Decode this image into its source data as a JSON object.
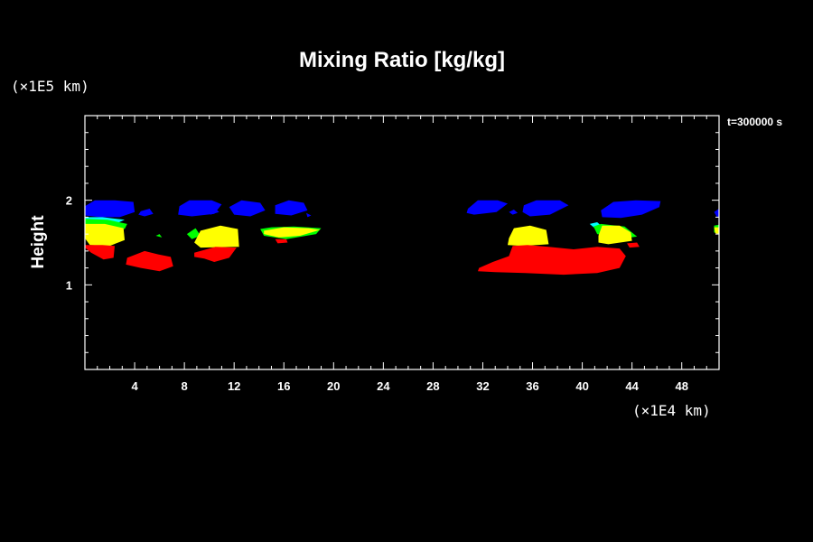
{
  "chart_data": {
    "type": "heatmap",
    "title": "Mixing Ratio [kg/kg]",
    "ylabel": "Height",
    "y_scale_label": "(×1E5 km)",
    "x_scale_label": "(×1E4 km)",
    "time_label": "t=300000 s",
    "xlim": [
      0,
      51
    ],
    "ylim": [
      0,
      3
    ],
    "x_ticks": [
      4,
      8,
      12,
      16,
      20,
      24,
      28,
      32,
      36,
      40,
      44,
      48
    ],
    "y_ticks": [
      1,
      2
    ],
    "background": "#000000",
    "colors": {
      "blue": "#0000ff",
      "cyan": "#00ffff",
      "green": "#00ff00",
      "yellow": "#ffff00",
      "red": "#ff0000"
    },
    "regions": [
      {
        "color": "blue",
        "points": [
          [
            0,
            1.93
          ],
          [
            0.8,
            2.0
          ],
          [
            2.4,
            2.0
          ],
          [
            3.9,
            1.98
          ],
          [
            4,
            1.86
          ],
          [
            2.8,
            1.8
          ],
          [
            1.2,
            1.8
          ],
          [
            0,
            1.82
          ]
        ]
      },
      {
        "color": "blue",
        "points": [
          [
            7.6,
            1.93
          ],
          [
            8.4,
            2.0
          ],
          [
            10.2,
            2.0
          ],
          [
            11,
            1.95
          ],
          [
            10.4,
            1.84
          ],
          [
            8.6,
            1.81
          ],
          [
            7.5,
            1.83
          ]
        ]
      },
      {
        "color": "blue",
        "points": [
          [
            11.6,
            1.92
          ],
          [
            12.6,
            2.0
          ],
          [
            14.1,
            1.97
          ],
          [
            14.5,
            1.88
          ],
          [
            13.3,
            1.81
          ],
          [
            12,
            1.83
          ]
        ]
      },
      {
        "color": "blue",
        "points": [
          [
            15.3,
            1.94
          ],
          [
            16.4,
            2.0
          ],
          [
            17.6,
            1.97
          ],
          [
            17.9,
            1.88
          ],
          [
            16.6,
            1.82
          ],
          [
            15.3,
            1.84
          ]
        ]
      },
      {
        "color": "blue",
        "points": [
          [
            17.8,
            1.85
          ],
          [
            18.2,
            1.82
          ],
          [
            17.9,
            1.8
          ]
        ]
      },
      {
        "color": "blue",
        "points": [
          [
            4.5,
            1.87
          ],
          [
            5.2,
            1.9
          ],
          [
            5.5,
            1.84
          ],
          [
            4.8,
            1.81
          ],
          [
            4.3,
            1.83
          ]
        ]
      },
      {
        "color": "blue",
        "points": [
          [
            9.8,
            1.88
          ],
          [
            10.4,
            1.91
          ],
          [
            10.8,
            1.86
          ],
          [
            10.1,
            1.83
          ]
        ]
      },
      {
        "color": "blue",
        "points": [
          [
            30.8,
            1.9
          ],
          [
            31.6,
            2.0
          ],
          [
            33.2,
            2.0
          ],
          [
            34,
            1.96
          ],
          [
            33.1,
            1.86
          ],
          [
            31.3,
            1.83
          ],
          [
            30.7,
            1.85
          ]
        ]
      },
      {
        "color": "blue",
        "points": [
          [
            35.3,
            1.94
          ],
          [
            36.3,
            2.0
          ],
          [
            38.2,
            2.0
          ],
          [
            38.9,
            1.94
          ],
          [
            37.4,
            1.83
          ],
          [
            35.8,
            1.81
          ],
          [
            35.2,
            1.86
          ]
        ]
      },
      {
        "color": "blue",
        "points": [
          [
            41.5,
            1.88
          ],
          [
            42.5,
            1.98
          ],
          [
            44.3,
            2.0
          ],
          [
            46.3,
            1.99
          ],
          [
            46.2,
            1.92
          ],
          [
            44.8,
            1.83
          ],
          [
            43.1,
            1.79
          ],
          [
            41.6,
            1.8
          ]
        ]
      },
      {
        "color": "blue",
        "points": [
          [
            34.1,
            1.86
          ],
          [
            34.5,
            1.89
          ],
          [
            34.8,
            1.85
          ],
          [
            34.4,
            1.83
          ]
        ]
      },
      {
        "color": "blue",
        "points": [
          [
            50.6,
            1.86
          ],
          [
            51,
            1.9
          ],
          [
            51,
            1.8
          ],
          [
            50.8,
            1.81
          ]
        ]
      },
      {
        "color": "cyan",
        "points": [
          [
            0,
            1.8
          ],
          [
            1.4,
            1.8
          ],
          [
            3.2,
            1.77
          ],
          [
            2.6,
            1.73
          ],
          [
            0,
            1.74
          ]
        ]
      },
      {
        "color": "cyan",
        "points": [
          [
            40.6,
            1.72
          ],
          [
            41.2,
            1.74
          ],
          [
            41.6,
            1.69
          ],
          [
            41,
            1.67
          ]
        ]
      },
      {
        "color": "green",
        "points": [
          [
            0,
            1.78
          ],
          [
            1.8,
            1.77
          ],
          [
            3.4,
            1.72
          ],
          [
            3.2,
            1.66
          ],
          [
            0,
            1.68
          ]
        ]
      },
      {
        "color": "green",
        "points": [
          [
            14.1,
            1.66
          ],
          [
            15,
            1.68
          ],
          [
            16.8,
            1.69
          ],
          [
            19,
            1.67
          ],
          [
            18.6,
            1.6
          ],
          [
            16.2,
            1.54
          ],
          [
            14.4,
            1.58
          ]
        ]
      },
      {
        "color": "green",
        "points": [
          [
            40.9,
            1.69
          ],
          [
            41.5,
            1.72
          ],
          [
            43.4,
            1.69
          ],
          [
            44.4,
            1.57
          ],
          [
            42.9,
            1.54
          ],
          [
            41.2,
            1.6
          ]
        ]
      },
      {
        "color": "green",
        "points": [
          [
            8.2,
            1.6
          ],
          [
            8.9,
            1.67
          ],
          [
            9.3,
            1.58
          ],
          [
            8.6,
            1.54
          ]
        ]
      },
      {
        "color": "green",
        "points": [
          [
            5.7,
            1.58
          ],
          [
            6,
            1.6
          ],
          [
            6.2,
            1.56
          ]
        ]
      },
      {
        "color": "green",
        "points": [
          [
            50.6,
            1.7
          ],
          [
            51,
            1.71
          ],
          [
            51,
            1.6
          ],
          [
            50.6,
            1.62
          ]
        ]
      },
      {
        "color": "yellow",
        "points": [
          [
            0,
            1.72
          ],
          [
            1.6,
            1.72
          ],
          [
            3.1,
            1.67
          ],
          [
            3.2,
            1.53
          ],
          [
            2,
            1.46
          ],
          [
            0.4,
            1.47
          ],
          [
            0,
            1.55
          ]
        ]
      },
      {
        "color": "yellow",
        "points": [
          [
            8.8,
            1.5
          ],
          [
            9.3,
            1.64
          ],
          [
            10.9,
            1.7
          ],
          [
            12.3,
            1.66
          ],
          [
            12.4,
            1.45
          ],
          [
            9.3,
            1.44
          ]
        ]
      },
      {
        "color": "yellow",
        "points": [
          [
            14.4,
            1.64
          ],
          [
            16,
            1.68
          ],
          [
            18,
            1.67
          ],
          [
            18.9,
            1.65
          ],
          [
            17.3,
            1.58
          ],
          [
            15.6,
            1.56
          ],
          [
            14.4,
            1.6
          ]
        ]
      },
      {
        "color": "yellow",
        "points": [
          [
            34.1,
            1.55
          ],
          [
            34.5,
            1.67
          ],
          [
            35.8,
            1.7
          ],
          [
            37.1,
            1.65
          ],
          [
            37.3,
            1.48
          ],
          [
            35.2,
            1.46
          ],
          [
            34,
            1.47
          ]
        ]
      },
      {
        "color": "yellow",
        "points": [
          [
            41.3,
            1.58
          ],
          [
            41.6,
            1.7
          ],
          [
            43,
            1.7
          ],
          [
            43.9,
            1.62
          ],
          [
            44,
            1.52
          ],
          [
            42.1,
            1.48
          ],
          [
            41.3,
            1.5
          ]
        ]
      },
      {
        "color": "yellow",
        "points": [
          [
            50.6,
            1.68
          ],
          [
            51,
            1.68
          ],
          [
            51,
            1.6
          ],
          [
            50.7,
            1.61
          ]
        ]
      },
      {
        "color": "red",
        "points": [
          [
            0,
            1.47
          ],
          [
            1.4,
            1.47
          ],
          [
            2.4,
            1.46
          ],
          [
            2.3,
            1.32
          ],
          [
            1.5,
            1.3
          ],
          [
            0.5,
            1.38
          ],
          [
            0,
            1.44
          ]
        ]
      },
      {
        "color": "red",
        "points": [
          [
            3.4,
            1.32
          ],
          [
            4.8,
            1.4
          ],
          [
            5.9,
            1.36
          ],
          [
            6.9,
            1.33
          ],
          [
            7.1,
            1.22
          ],
          [
            6,
            1.16
          ],
          [
            4.5,
            1.2
          ],
          [
            3.3,
            1.24
          ]
        ]
      },
      {
        "color": "red",
        "points": [
          [
            8.8,
            1.38
          ],
          [
            10.5,
            1.45
          ],
          [
            12.2,
            1.44
          ],
          [
            11.6,
            1.32
          ],
          [
            10.4,
            1.27
          ],
          [
            9.6,
            1.31
          ],
          [
            8.8,
            1.33
          ]
        ]
      },
      {
        "color": "red",
        "points": [
          [
            15.3,
            1.54
          ],
          [
            16.2,
            1.54
          ],
          [
            16.3,
            1.5
          ],
          [
            15.5,
            1.49
          ]
        ]
      },
      {
        "color": "red",
        "points": [
          [
            31.7,
            1.2
          ],
          [
            32.8,
            1.27
          ],
          [
            34.1,
            1.34
          ],
          [
            34.4,
            1.46
          ],
          [
            35.6,
            1.47
          ],
          [
            37.3,
            1.45
          ],
          [
            39.3,
            1.42
          ],
          [
            41.2,
            1.45
          ],
          [
            43,
            1.43
          ],
          [
            43.5,
            1.34
          ],
          [
            43,
            1.2
          ],
          [
            41.2,
            1.14
          ],
          [
            38.5,
            1.12
          ],
          [
            35.4,
            1.14
          ],
          [
            33,
            1.15
          ],
          [
            31.6,
            1.16
          ]
        ]
      },
      {
        "color": "red",
        "points": [
          [
            43.6,
            1.49
          ],
          [
            44.4,
            1.5
          ],
          [
            44.6,
            1.45
          ],
          [
            43.8,
            1.44
          ]
        ]
      }
    ]
  }
}
